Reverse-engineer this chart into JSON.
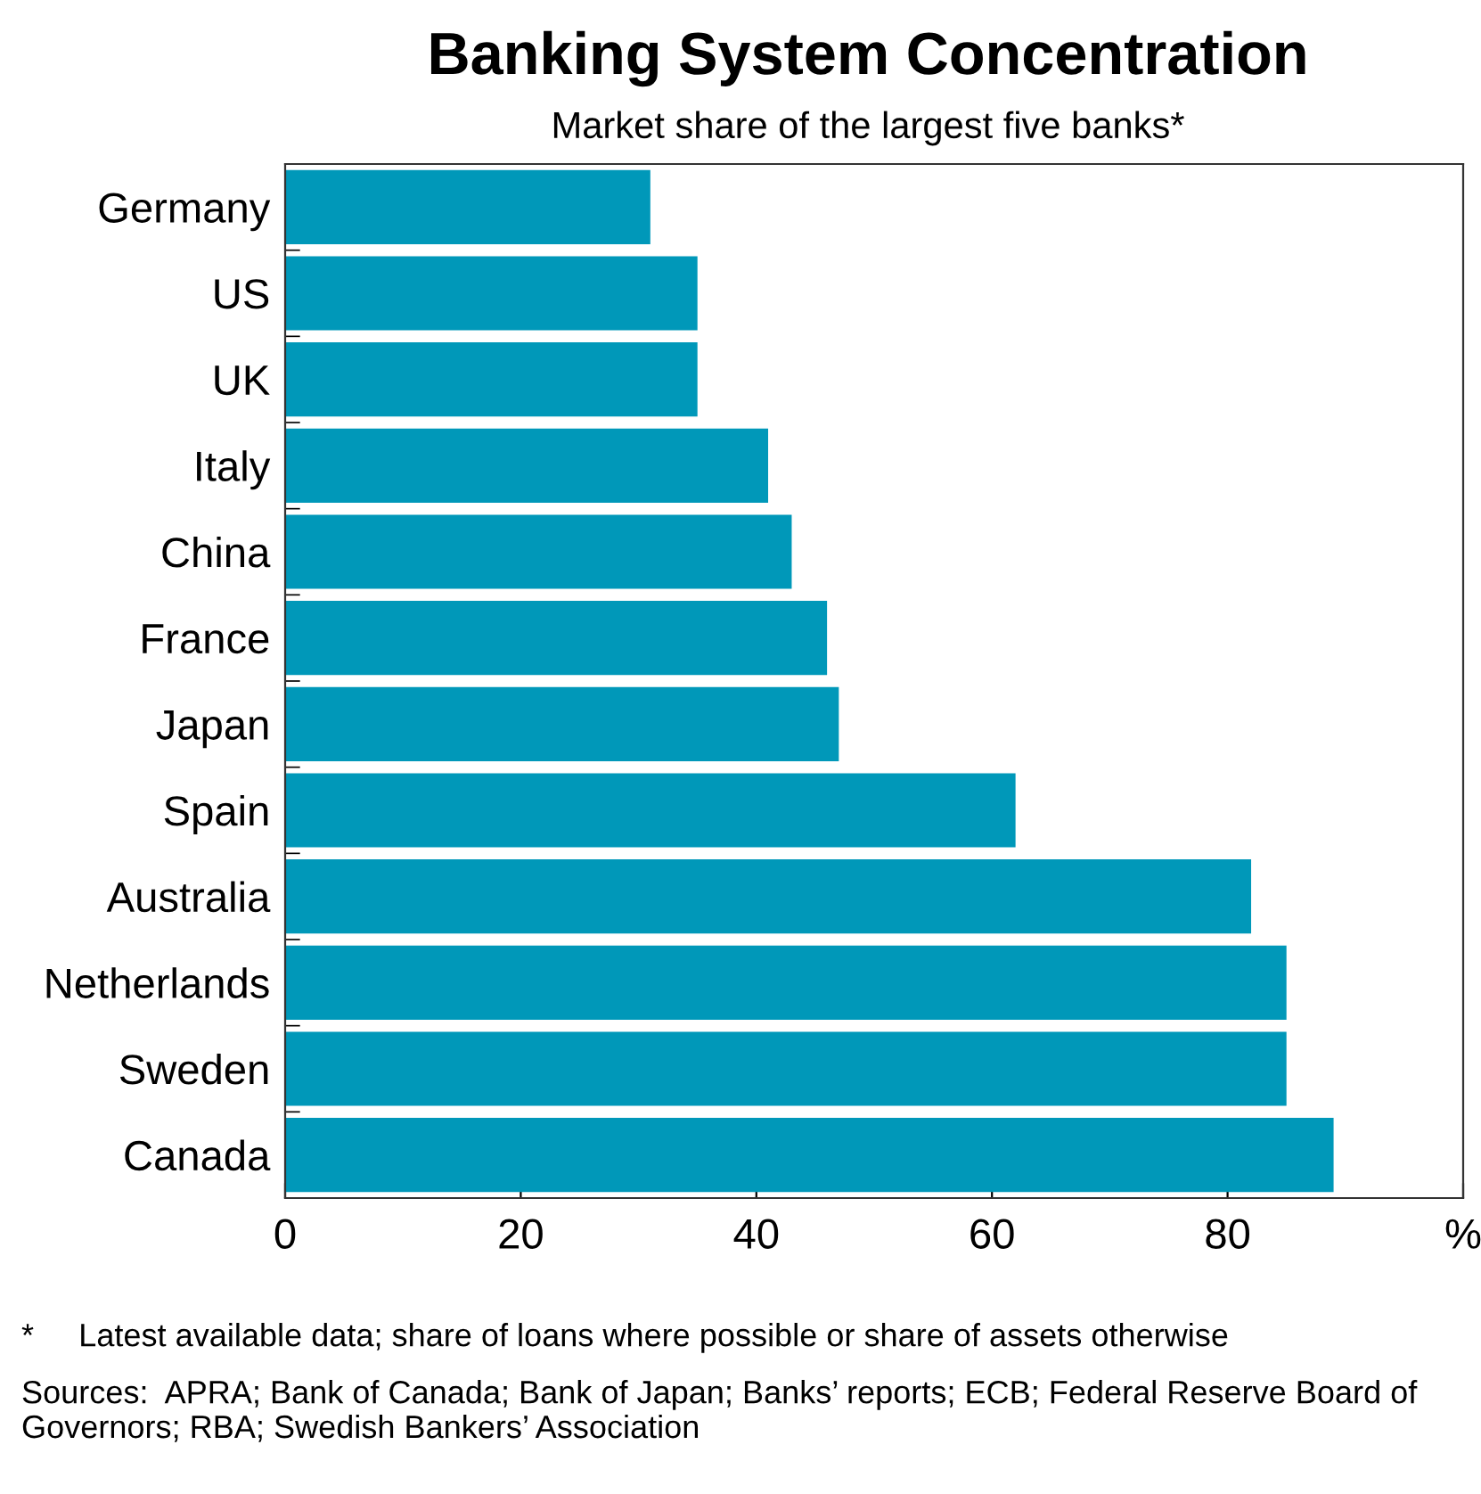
{
  "chart_data": {
    "type": "bar",
    "orientation": "horizontal",
    "title": "Banking System Concentration",
    "subtitle": "Market share of the largest five banks*",
    "categories": [
      "Germany",
      "US",
      "UK",
      "Italy",
      "China",
      "France",
      "Japan",
      "Spain",
      "Australia",
      "Netherlands",
      "Sweden",
      "Canada"
    ],
    "values": [
      31,
      35,
      35,
      41,
      43,
      46,
      47,
      62,
      82,
      85,
      85,
      89
    ],
    "color": "#0098b9",
    "xlim": [
      0,
      100
    ],
    "xticks": [
      0,
      20,
      40,
      60,
      80,
      {
        "value": 100,
        "label": "%"
      }
    ],
    "grid": false,
    "legend": false,
    "annotations": [
      "*     Latest available data; share of loans where possible or share of assets otherwise",
      "Sources:  APRA; Bank of Canada; Bank of Japan; Banks’ reports; ECB; Federal Reserve Board of Governors; RBA; Swedish Bankers’ Association"
    ]
  }
}
